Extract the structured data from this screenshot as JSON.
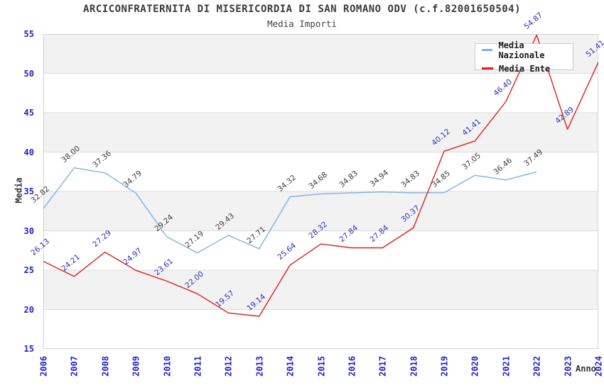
{
  "chart_data": {
    "type": "line",
    "title": "ARCICONFRATERNITA DI MISERICORDIA DI SAN ROMANO ODV (c.f.82001650504)",
    "subtitle": "Media Importi",
    "xlabel": "Anno",
    "ylabel": "Media",
    "x": [
      "2006",
      "2007",
      "2008",
      "2009",
      "2010",
      "2011",
      "2012",
      "2013",
      "2014",
      "2015",
      "2016",
      "2017",
      "2018",
      "2019",
      "2020",
      "2021",
      "2022",
      "2023",
      "2024"
    ],
    "yticks": [
      15,
      20,
      25,
      30,
      35,
      40,
      45,
      50,
      55
    ],
    "ylim": [
      15,
      55
    ],
    "grid": true,
    "legend_position": "top-right",
    "band_colors": [
      "#f2f2f2",
      "#ffffff"
    ],
    "grid_color": "#dcdcdc",
    "plot_border_color": "#d4d4d4",
    "tick_label_color": "#2222cc",
    "axis_title_color": "#333333",
    "series": [
      {
        "name": "Media Nazionale",
        "color": "#7eb2e3",
        "label_color": "#3d3d3d",
        "values": [
          32.82,
          38.0,
          37.36,
          34.79,
          29.24,
          27.19,
          29.43,
          27.71,
          34.32,
          34.68,
          34.83,
          34.94,
          34.83,
          34.85,
          37.05,
          36.46,
          37.49,
          null,
          null
        ]
      },
      {
        "name": "Media Ente",
        "color": "#e01f1f",
        "label_color": "#2e2eb8",
        "values": [
          26.13,
          24.21,
          27.29,
          24.97,
          23.61,
          22.0,
          19.57,
          19.14,
          25.64,
          28.32,
          27.84,
          27.84,
          30.37,
          40.12,
          41.41,
          46.4,
          54.87,
          42.89,
          51.41
        ]
      }
    ]
  }
}
